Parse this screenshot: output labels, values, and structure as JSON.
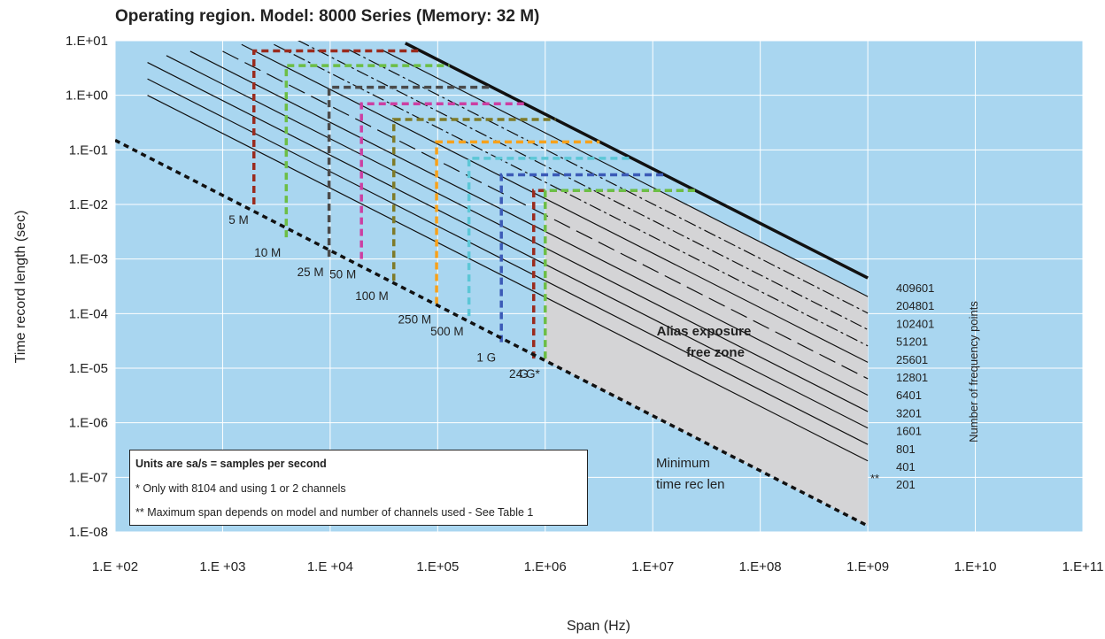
{
  "chart_data": {
    "type": "line",
    "title": "Operating region. Model: 8000 Series (Memory: 32 M)",
    "xlabel": "Span (Hz)",
    "ylabel": "Time record length (sec)",
    "x_scale": "log",
    "y_scale": "log",
    "xlim": [
      100,
      100000000000
    ],
    "ylim": [
      1e-08,
      10
    ],
    "x_ticks": [
      "1.E +02",
      "1.E +03",
      "1.E +04",
      "1.E+05",
      "1.E+06",
      "1.E+07",
      "1.E+08",
      "1.E+09",
      "1.E+10",
      "1.E+11"
    ],
    "y_ticks": [
      "1.E+01",
      "1.E+00",
      "1.E-01",
      "1.E-02",
      "1.E-03",
      "1.E-04",
      "1.E-05",
      "1.E-06",
      "1.E-07",
      "1.E-08"
    ],
    "grid": true,
    "background": "#a9d6f0",
    "frequency_points_title": "Number of frequency points",
    "frequency_points": [
      {
        "label": "409601",
        "x_start": 50000,
        "y_end": 0.00045,
        "style": "bold"
      },
      {
        "label": "204801",
        "x_start": 30000,
        "y_end": 0.000205,
        "style": "solid"
      },
      {
        "label": "102401",
        "x_start": 15000,
        "y_end": 0.000102,
        "style": "dashdot"
      },
      {
        "label": "51201",
        "x_start": 5000,
        "y_end": 5.1e-05,
        "style": "dashdot"
      },
      {
        "label": "25601",
        "x_start": 3000,
        "y_end": 2.56e-05,
        "style": "dashdot"
      },
      {
        "label": "12801",
        "x_start": 1500,
        "y_end": 1.28e-05,
        "style": "solid"
      },
      {
        "label": "6401",
        "x_start": 1000,
        "y_end": 6.4e-06,
        "style": "longdash"
      },
      {
        "label": "3201",
        "x_start": 500,
        "y_end": 3.2e-06,
        "style": "solid"
      },
      {
        "label": "1601",
        "x_start": 300,
        "y_end": 1.6e-06,
        "style": "solid"
      },
      {
        "label": "801",
        "x_start": 200,
        "y_end": 8e-07,
        "style": "solid"
      },
      {
        "label": "401",
        "x_start": 200,
        "y_end": 4e-07,
        "style": "solid"
      },
      {
        "label": "201",
        "x_start": 200,
        "y_end": 2e-07,
        "style": "solid"
      }
    ],
    "max_span_marker": "**",
    "sample_rates": [
      {
        "label": "5 M",
        "color": "#9a2b1e",
        "span_max": 1953,
        "trl_min": 0.01,
        "trl_max": 6.5
      },
      {
        "label": "10 M",
        "color": "#6cbe45",
        "span_max": 3906,
        "trl_min": 0.0025,
        "trl_max": 3.5
      },
      {
        "label": "25 M",
        "color": "#4a4a4a",
        "span_max": 9766,
        "trl_min": 0.0011,
        "trl_max": 1.4
      },
      {
        "label": "50 M",
        "color": "#cc3fa2",
        "span_max": 19531,
        "trl_min": 0.001,
        "trl_max": 0.7
      },
      {
        "label": "100 M",
        "color": "#7e7a28",
        "span_max": 39063,
        "trl_min": 0.0004,
        "trl_max": 0.36
      },
      {
        "label": "250 M",
        "color": "#f7a11a",
        "span_max": 97656,
        "trl_min": 0.00015,
        "trl_max": 0.14
      },
      {
        "label": "500 M",
        "color": "#5cc7d6",
        "span_max": 195313,
        "trl_min": 9e-05,
        "trl_max": 0.07
      },
      {
        "label": "1 G",
        "color": "#3b5ab7",
        "span_max": 390625,
        "trl_min": 3e-05,
        "trl_max": 0.035
      },
      {
        "label": "2 G",
        "color": "#9a2b1e",
        "span_max": 781250,
        "trl_min": 1.5e-05,
        "trl_max": 0.018
      },
      {
        "label": "4 G*",
        "color": "#6cbe45",
        "span_max": 1000000,
        "trl_min": 1.5e-05,
        "trl_max": 0.018
      }
    ],
    "minimum_trl_line": {
      "x": [
        100,
        1000000000
      ],
      "y": [
        0.15,
        1.29e-08
      ]
    },
    "alias_free_zone": {
      "label_line1": "Alias exposure",
      "label_line2": "free zone",
      "color": "#d4d4d6"
    },
    "minimum_label_line1": "Minimum",
    "minimum_label_line2": "time rec len",
    "notes": {
      "line1": "Units are sa/s = samples per second",
      "line2": "* Only with 8104 and using 1 or 2 channels",
      "line3": "** Maximum span depends on model and number of channels used - See Table 1"
    }
  }
}
